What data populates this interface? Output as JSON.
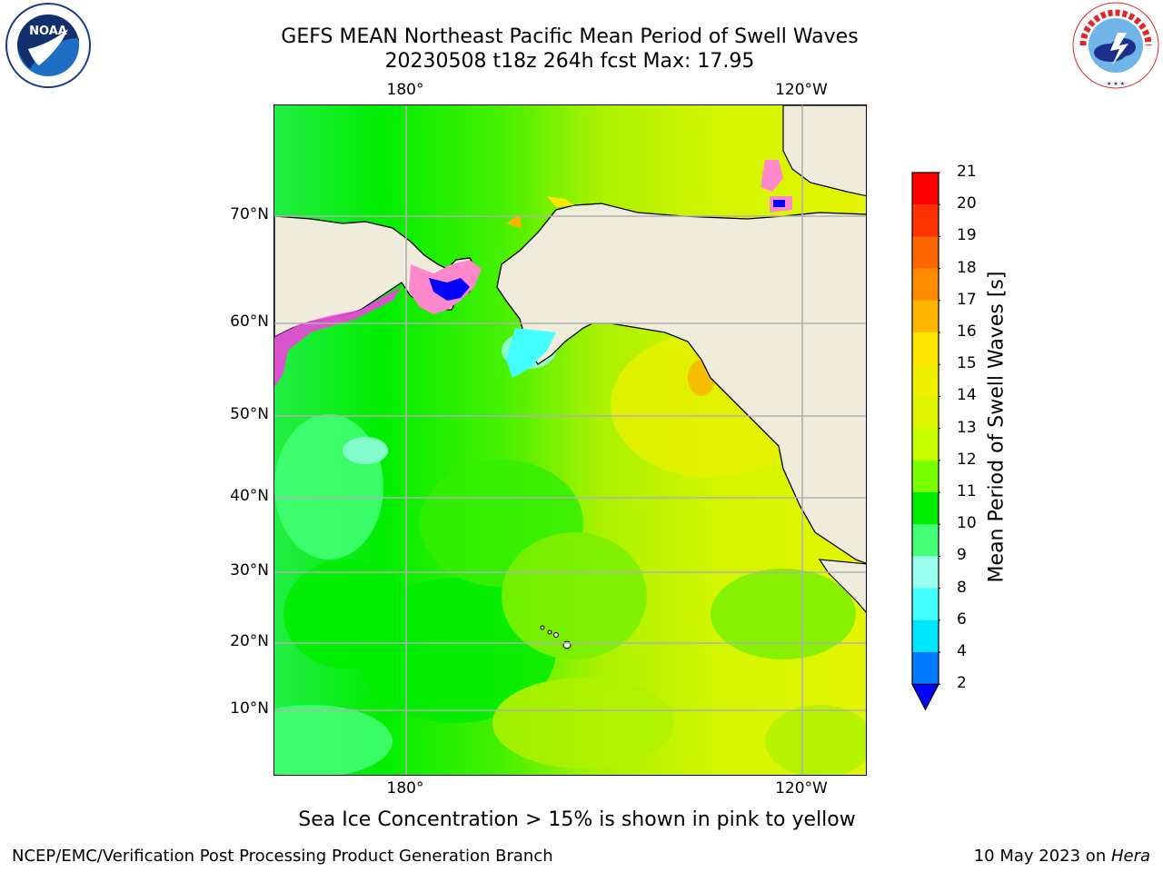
{
  "title": {
    "line1": "GEFS MEAN Northeast Pacific Mean Period of Swell Waves",
    "line2": "20230508 t18z 264h fcst   Max: 17.95"
  },
  "map": {
    "lon_labels": [
      "180°",
      "120°W"
    ],
    "lat_labels": [
      "70°N",
      "60°N",
      "50°N",
      "40°N",
      "30°N",
      "20°N",
      "10°N"
    ],
    "land_color": "#efecdc",
    "grid_color": "#b0b0b0"
  },
  "colorbar": {
    "label": "Mean Period of Swell Waves [s]",
    "ticks": [
      "21",
      "20",
      "19",
      "18",
      "17",
      "16",
      "15",
      "14",
      "13",
      "12",
      "11",
      "10",
      "9",
      "8",
      "6",
      "4",
      "2"
    ],
    "colors_top_to_bottom": [
      "#ff0000",
      "#ff3300",
      "#ff6600",
      "#ff8c00",
      "#ffb400",
      "#ffe600",
      "#f0f000",
      "#e0f500",
      "#c8ff00",
      "#78ff00",
      "#00ee00",
      "#44ff77",
      "#99ffee",
      "#44ffff",
      "#00e5ff",
      "#0077ff"
    ],
    "under_color": "#0000ff"
  },
  "note": "Sea Ice Concentration > 15% is shown in pink to yellow",
  "footer": {
    "left": "NCEP/EMC/Verification Post Processing Product Generation Branch",
    "right_prefix": "10 May 2023 on ",
    "right_italic": "Hera"
  },
  "logos": {
    "noaa_text": "NOAA",
    "nws_text": "NATIONAL WEATHER SERVICE"
  }
}
